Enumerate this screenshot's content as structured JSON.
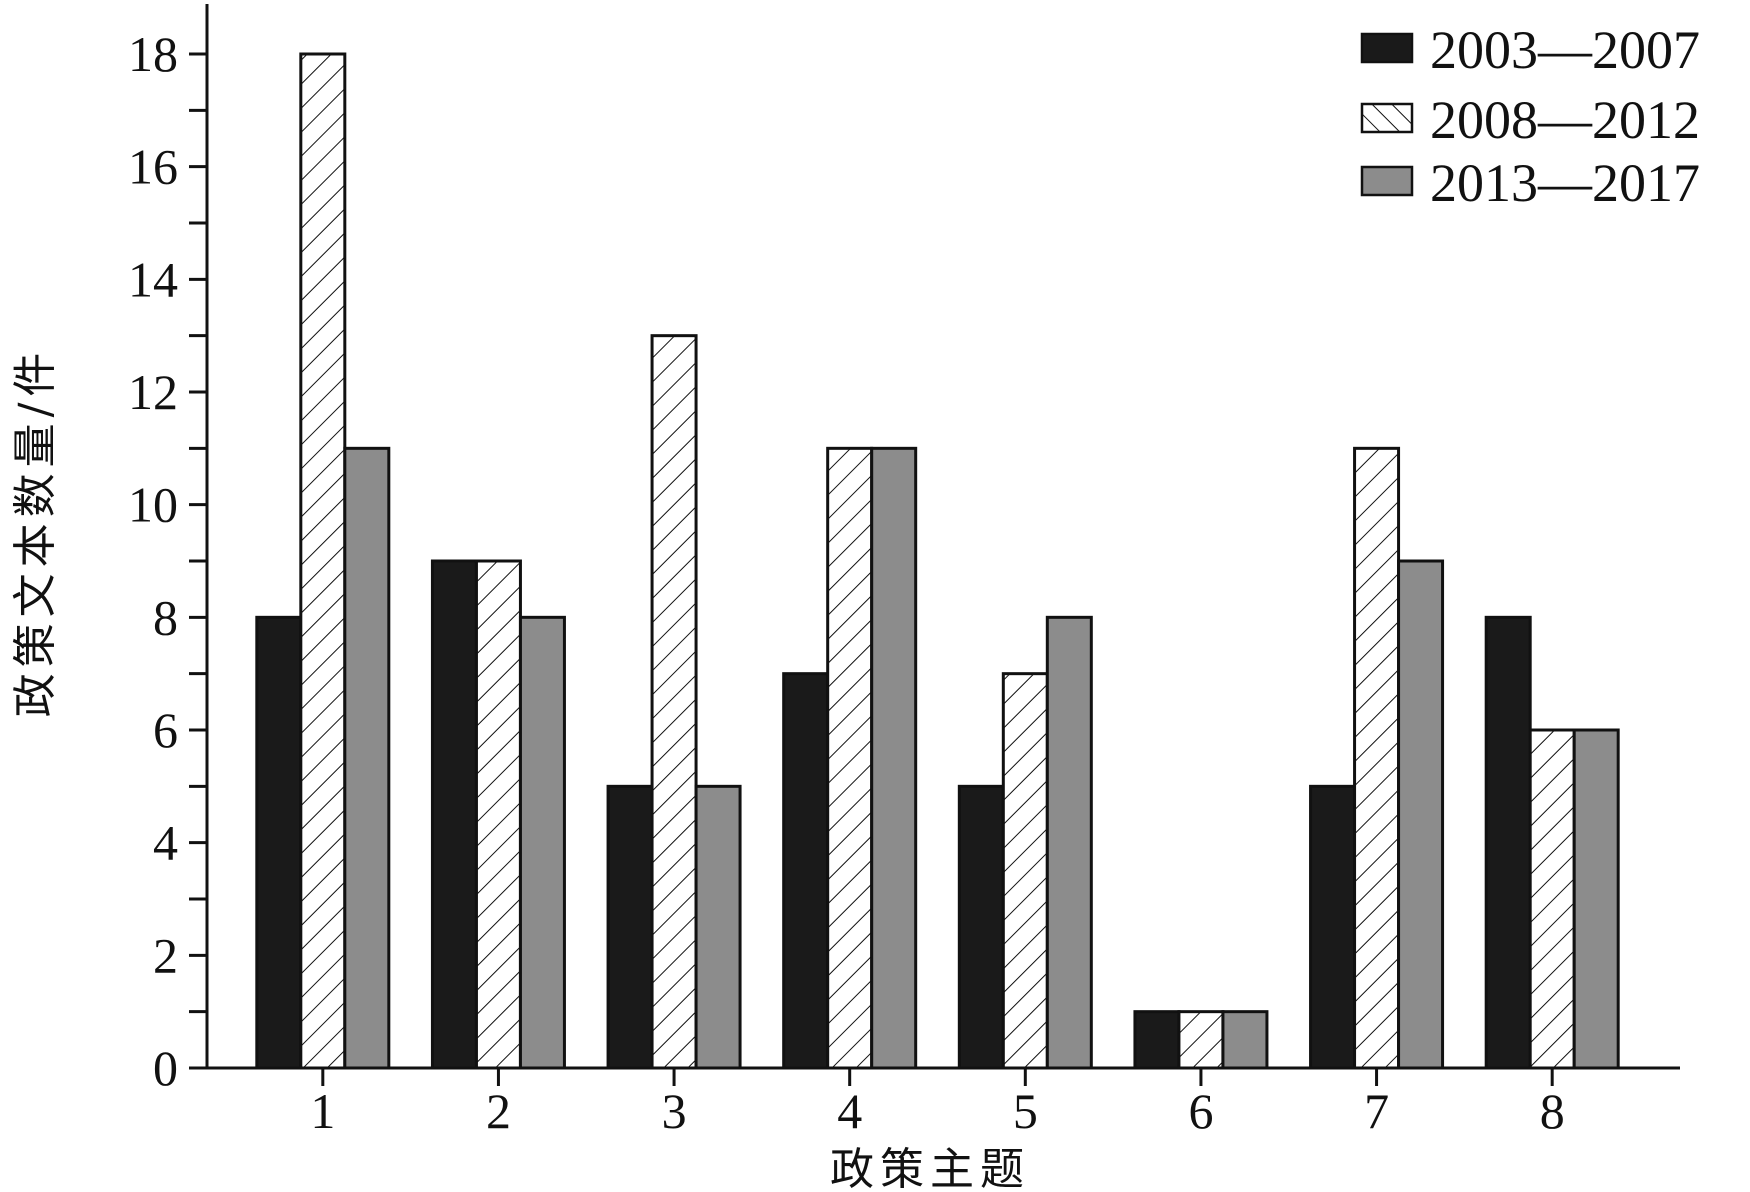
{
  "chart_data": {
    "type": "bar",
    "title": "",
    "xlabel": "政策主题",
    "ylabel": "政策文本数量/件",
    "categories": [
      "1",
      "2",
      "3",
      "4",
      "5",
      "6",
      "7",
      "8"
    ],
    "ylim": [
      0,
      18
    ],
    "yticks": [
      "0",
      "2",
      "4",
      "6",
      "8",
      "10",
      "12",
      "14",
      "16",
      "18"
    ],
    "legend_position": "top-right",
    "series": [
      {
        "name": "2003—2007",
        "style": "solid-black",
        "color": "#1a1a1a",
        "values": [
          8,
          9,
          5,
          7,
          5,
          1,
          5,
          8
        ]
      },
      {
        "name": "2008—2012",
        "style": "hatched",
        "color": "#ffffff",
        "values": [
          18,
          9,
          13,
          11,
          7,
          1,
          11,
          6
        ]
      },
      {
        "name": "2013—2017",
        "style": "solid-gray",
        "color": "#8c8c8c",
        "values": [
          11,
          8,
          5,
          11,
          8,
          1,
          9,
          6
        ]
      }
    ]
  }
}
